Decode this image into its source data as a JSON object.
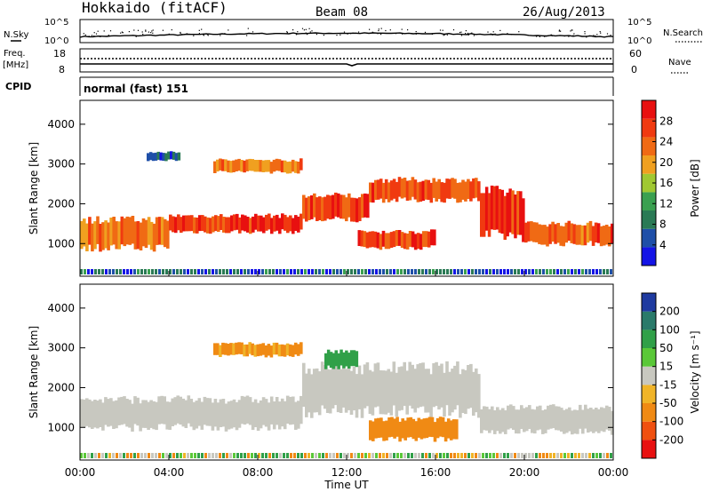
{
  "header": {
    "station": "Hokkaido (fitACF)",
    "beam": "Beam 08",
    "date": "26/Aug/2013"
  },
  "panels": {
    "nsky": {
      "label": "N.Sky",
      "right_label": "N.Search",
      "ticks_left": [
        "10^5",
        "10^0"
      ],
      "ticks_right": [
        "10^5",
        "10^0"
      ]
    },
    "freq": {
      "label_top": "Freq.",
      "label_bottom": "[MHz]",
      "right_label": "Nave",
      "ticks_left": [
        "18",
        "8"
      ],
      "ticks_right": [
        "60",
        "0"
      ]
    },
    "cpid": {
      "label": "CPID",
      "value": "normal (fast) 151"
    }
  },
  "colors": {
    "power": [
      "#1414e6",
      "#1e4fa8",
      "#2a7a55",
      "#3aa050",
      "#a0c832",
      "#f0a020",
      "#f06a14",
      "#f03a10",
      "#e81010"
    ],
    "velocity": [
      "#e81010",
      "#f05010",
      "#f08a14",
      "#f0b428",
      "#c8c8c0",
      "#5ac838",
      "#30a048",
      "#2a7a6a",
      "#1e3aa0"
    ]
  },
  "chart_data": [
    {
      "type": "heatmap",
      "title": "Power",
      "ylabel": "Slant Range [km]",
      "ylim": [
        180,
        4600
      ],
      "yticks": [
        "1000",
        "2000",
        "3000",
        "4000"
      ],
      "colorbar_label": "Power [dB]",
      "colorbar_ticks": [
        "4",
        "8",
        "12",
        "16",
        "20",
        "24",
        "28"
      ],
      "colorbar_range": [
        0,
        32
      ],
      "bands": [
        {
          "t0": 0,
          "t1": 4,
          "r0": 900,
          "r1": 1600,
          "level": 22
        },
        {
          "t0": 4,
          "t1": 10,
          "r0": 1300,
          "r1": 1700,
          "level": 27
        },
        {
          "t0": 10,
          "t1": 13,
          "r0": 1600,
          "r1": 2200,
          "level": 27
        },
        {
          "t0": 13,
          "t1": 18,
          "r0": 2100,
          "r1": 2600,
          "level": 25
        },
        {
          "t0": 18,
          "t1": 20,
          "r0": 1200,
          "r1": 2300,
          "level": 27
        },
        {
          "t0": 20,
          "t1": 24,
          "r0": 1000,
          "r1": 1500,
          "level": 25
        },
        {
          "t0": 6,
          "t1": 10,
          "r0": 2800,
          "r1": 3100,
          "level": 22
        },
        {
          "t0": 12.5,
          "t1": 16,
          "r0": 900,
          "r1": 1300,
          "level": 26
        },
        {
          "t0": 3,
          "t1": 4.5,
          "r0": 3100,
          "r1": 3300,
          "level": 6
        }
      ]
    },
    {
      "type": "heatmap",
      "title": "Velocity",
      "xlabel": "Time UT",
      "ylabel": "Slant Range [km]",
      "ylim": [
        180,
        4600
      ],
      "yticks": [
        "1000",
        "2000",
        "3000",
        "4000"
      ],
      "xticks": [
        "00:00",
        "04:00",
        "08:00",
        "12:00",
        "16:00",
        "20:00",
        "00:00"
      ],
      "xlim_hours": [
        0,
        24
      ],
      "colorbar_label": "Velocity [m s⁻¹]",
      "colorbar_ticks": [
        "200",
        "100",
        "50",
        "15",
        "-15",
        "-50",
        "-100",
        "-200"
      ],
      "bands": [
        {
          "t0": 0,
          "t1": 10,
          "r0": 1000,
          "r1": 1700,
          "v": 0
        },
        {
          "t0": 10,
          "t1": 18,
          "r0": 1400,
          "r1": 2500,
          "v": 0
        },
        {
          "t0": 18,
          "t1": 24,
          "r0": 900,
          "r1": 1500,
          "v": 0
        },
        {
          "t0": 6,
          "t1": 10,
          "r0": 2800,
          "r1": 3100,
          "v": -40
        },
        {
          "t0": 11,
          "t1": 12.5,
          "r0": 2500,
          "r1": 2900,
          "v": 60
        },
        {
          "t0": 13,
          "t1": 17,
          "r0": 700,
          "r1": 1200,
          "v": -60
        }
      ]
    }
  ]
}
